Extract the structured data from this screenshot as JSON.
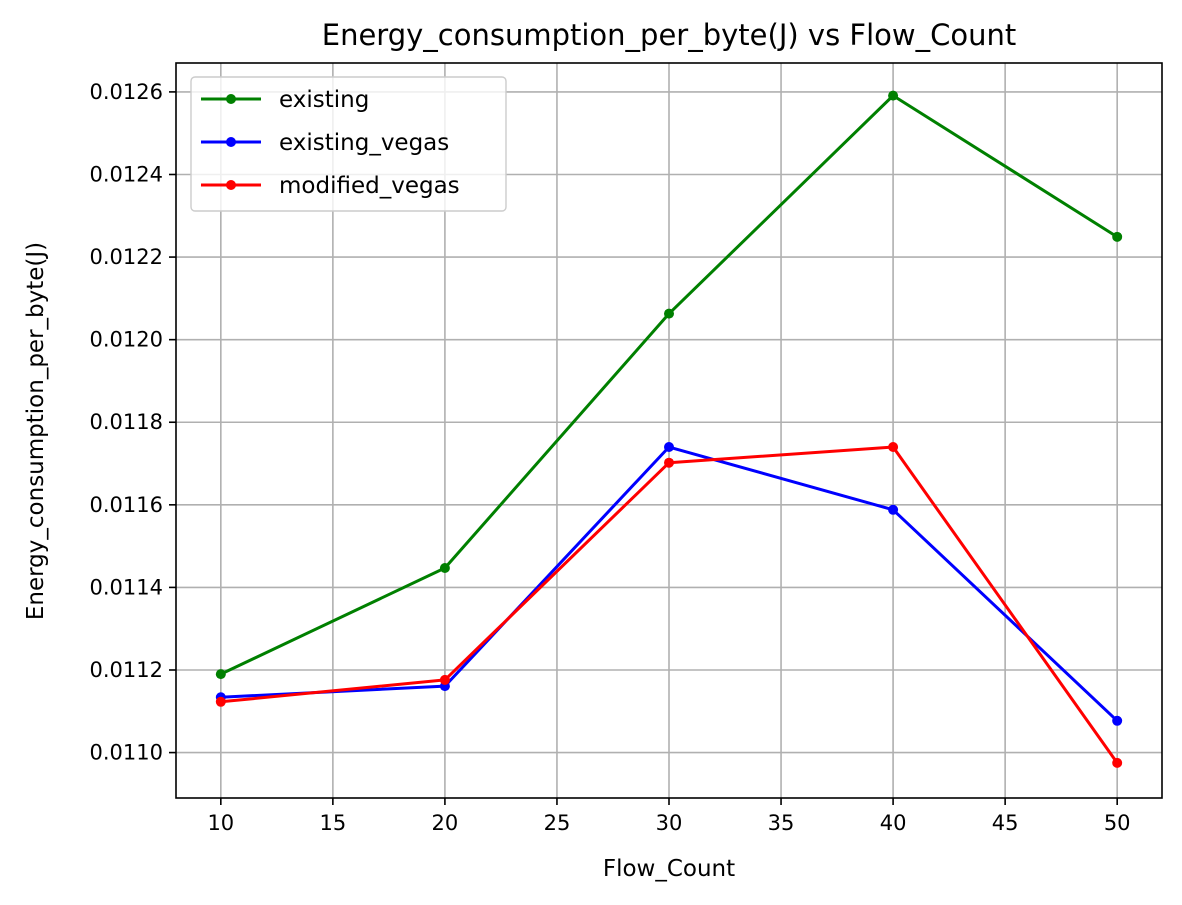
{
  "chart_data": {
    "type": "line",
    "title": "Energy_consumption_per_byte(J) vs Flow_Count",
    "xlabel": "Flow_Count",
    "ylabel": "Energy_consumption_per_byte(J)",
    "x": [
      10,
      20,
      30,
      40,
      50
    ],
    "xlim": [
      8,
      52
    ],
    "ylim": [
      0.01089,
      0.01267
    ],
    "xticks": [
      10,
      15,
      20,
      25,
      30,
      35,
      40,
      45,
      50
    ],
    "yticks": [
      "0.0110",
      "0.0112",
      "0.0114",
      "0.0116",
      "0.0118",
      "0.0120",
      "0.0122",
      "0.0124",
      "0.0126"
    ],
    "grid": true,
    "legend_position": "top-left",
    "series": [
      {
        "name": "existing",
        "color": "#008000",
        "values": [
          0.01119,
          0.011447,
          0.012063,
          0.012591,
          0.012249
        ]
      },
      {
        "name": "existing_vegas",
        "color": "#0000ff",
        "values": [
          0.011134,
          0.011161,
          0.01174,
          0.011588,
          0.011077
        ]
      },
      {
        "name": "modified_vegas",
        "color": "#ff0000",
        "values": [
          0.011123,
          0.011176,
          0.011702,
          0.01174,
          0.010975
        ]
      }
    ]
  }
}
